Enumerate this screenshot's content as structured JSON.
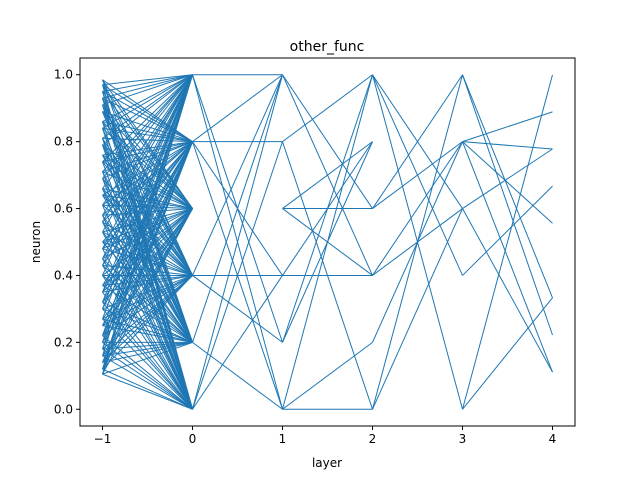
{
  "chart_data": {
    "type": "line",
    "title": "other_func",
    "xlabel": "layer",
    "ylabel": "neuron",
    "xlim": [
      -1.25,
      4.25
    ],
    "ylim": [
      -0.05,
      1.05
    ],
    "xticks": [
      -1,
      0,
      1,
      2,
      3,
      4
    ],
    "xtick_labels": [
      "−1",
      "0",
      "1",
      "2",
      "3",
      "4"
    ],
    "yticks": [
      0,
      0.2,
      0.4,
      0.6,
      0.8,
      1.0
    ],
    "ytick_labels": [
      "0.0",
      "0.2",
      "0.4",
      "0.6",
      "0.8",
      "1.0"
    ],
    "grid": false,
    "color": "#1f77b4",
    "input_neurons": [
      0.985,
      0.97,
      0.95,
      0.93,
      0.91,
      0.89,
      0.86,
      0.84,
      0.81,
      0.79,
      0.76,
      0.74,
      0.71,
      0.69,
      0.66,
      0.64,
      0.61,
      0.58,
      0.56,
      0.53,
      0.5,
      0.48,
      0.45,
      0.43,
      0.4,
      0.37,
      0.35,
      0.32,
      0.3,
      0.27,
      0.25,
      0.22,
      0.2,
      0.18,
      0.16,
      0.14,
      0.12,
      0.105
    ],
    "layer0_neurons": [
      0,
      0.2,
      0.4,
      0.6,
      0.8,
      1.0
    ],
    "edges": [
      [
        0,
        1.0,
        1,
        1.0
      ],
      [
        0,
        1.0,
        1,
        0.2
      ],
      [
        0,
        1.0,
        1,
        0.0
      ],
      [
        0,
        0.8,
        1,
        0.8
      ],
      [
        0,
        0.8,
        1,
        1.0
      ],
      [
        0,
        0.8,
        1,
        0.4
      ],
      [
        0,
        0.8,
        1,
        0.0
      ],
      [
        0,
        0.4,
        1,
        0.4
      ],
      [
        0,
        0.4,
        1,
        1.0
      ],
      [
        0,
        0.4,
        1,
        0.2
      ],
      [
        0,
        0.2,
        1,
        1.0
      ],
      [
        0,
        0.2,
        1,
        0.0
      ],
      [
        0,
        0.0,
        1,
        1.0
      ],
      [
        0,
        0.0,
        1,
        0.8
      ],
      [
        0,
        0.0,
        1,
        0.4
      ],
      [
        1,
        1.0,
        2,
        0.6
      ],
      [
        1,
        1.0,
        2,
        0.4
      ],
      [
        1,
        0.8,
        2,
        1.0
      ],
      [
        1,
        0.8,
        2,
        0.0
      ],
      [
        1,
        0.6,
        2,
        0.6
      ],
      [
        1,
        0.6,
        2,
        0.8
      ],
      [
        1,
        0.6,
        2,
        0.4
      ],
      [
        1,
        0.4,
        2,
        0.4
      ],
      [
        1,
        0.4,
        2,
        0.8
      ],
      [
        1,
        0.2,
        2,
        1.0
      ],
      [
        1,
        0.2,
        2,
        0.8
      ],
      [
        1,
        0.0,
        2,
        0.0
      ],
      [
        1,
        0.0,
        2,
        0.2
      ],
      [
        1,
        0.0,
        2,
        1.0
      ],
      [
        2,
        1.0,
        3,
        0.6
      ],
      [
        2,
        1.0,
        3,
        0.4
      ],
      [
        2,
        1.0,
        3,
        0.0
      ],
      [
        2,
        0.6,
        3,
        0.8
      ],
      [
        2,
        0.6,
        3,
        1.0
      ],
      [
        2,
        0.4,
        3,
        0.6
      ],
      [
        2,
        0.4,
        3,
        0.8
      ],
      [
        2,
        0.2,
        3,
        0.8
      ],
      [
        2,
        0.0,
        3,
        0.6
      ],
      [
        2,
        0.0,
        3,
        1.0
      ],
      [
        3,
        1.0,
        4,
        0.333
      ],
      [
        3,
        1.0,
        4,
        0.222
      ],
      [
        3,
        0.8,
        4,
        0.889
      ],
      [
        3,
        0.8,
        4,
        0.778
      ],
      [
        3,
        0.8,
        4,
        0.556
      ],
      [
        3,
        0.8,
        4,
        0.111
      ],
      [
        3,
        0.6,
        4,
        0.778
      ],
      [
        3,
        0.6,
        4,
        0.111
      ],
      [
        3,
        0.4,
        4,
        0.667
      ],
      [
        3,
        0.0,
        4,
        1.0
      ],
      [
        3,
        0.0,
        4,
        0.333
      ]
    ]
  }
}
